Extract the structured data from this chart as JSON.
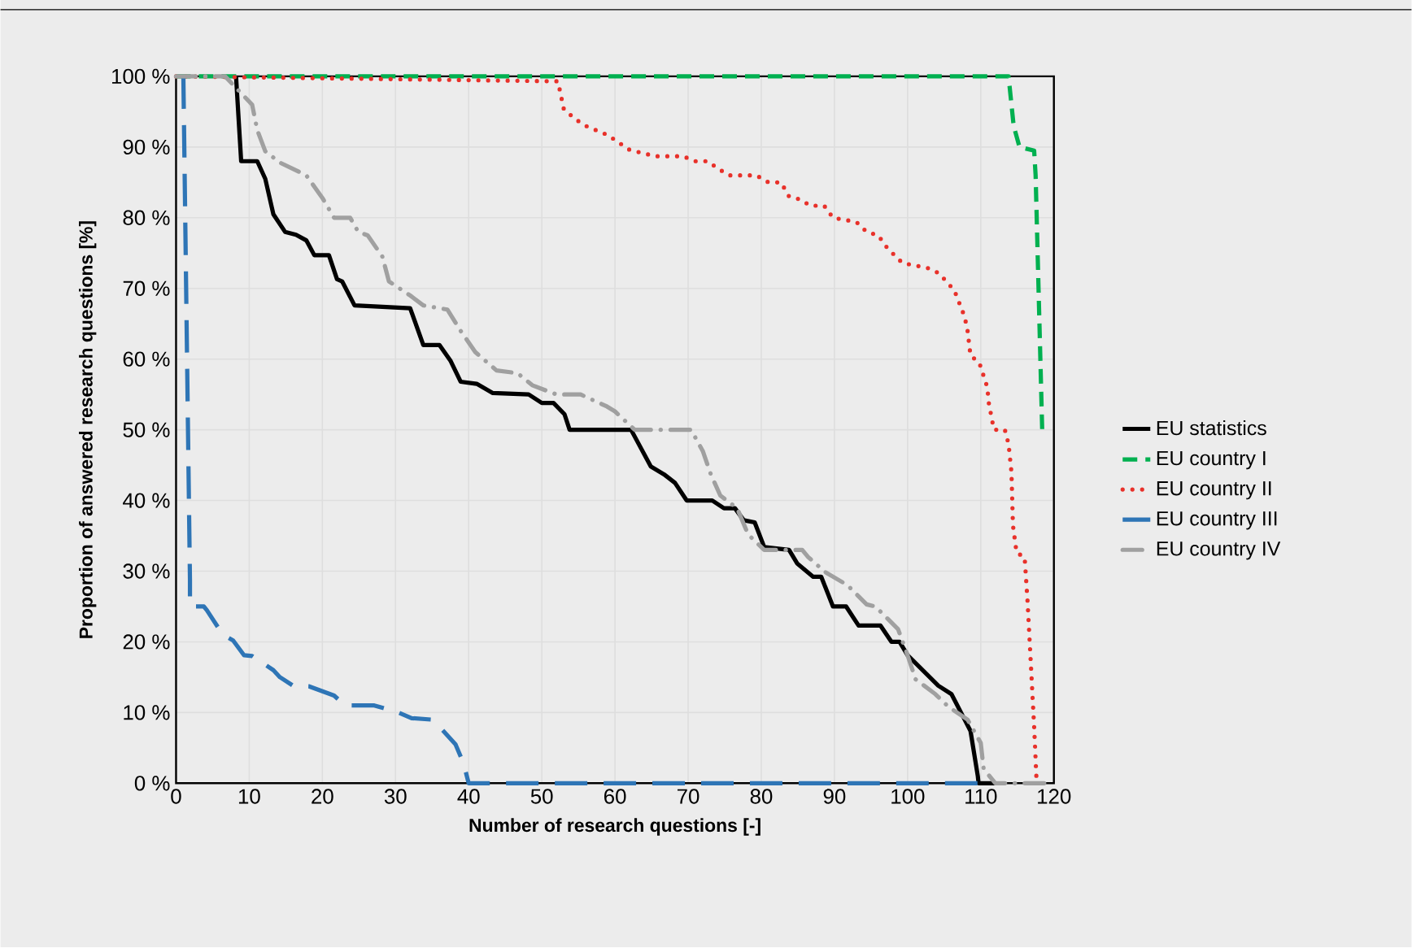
{
  "chart_data": {
    "type": "line",
    "xlabel": "Number of research questions [-]",
    "ylabel": "Proportion of answered research questions [%]",
    "xlim": [
      0,
      120
    ],
    "xticks": [
      0,
      10,
      20,
      30,
      40,
      50,
      60,
      70,
      80,
      90,
      100,
      110,
      120
    ],
    "ylim": [
      0,
      100
    ],
    "yticks": [
      {
        "value": 0,
        "label": "0 %"
      },
      {
        "value": 10,
        "label": "10 %"
      },
      {
        "value": 20,
        "label": "20 %"
      },
      {
        "value": 30,
        "label": "30 %"
      },
      {
        "value": 40,
        "label": "40 %"
      },
      {
        "value": 50,
        "label": "50 %"
      },
      {
        "value": 60,
        "label": "60 %"
      },
      {
        "value": 70,
        "label": "70 %"
      },
      {
        "value": 80,
        "label": "80 %"
      },
      {
        "value": 90,
        "label": "90 %"
      },
      {
        "value": 100,
        "label": "100 %"
      }
    ],
    "grid": true,
    "legend": "right",
    "marker": "none",
    "series": [
      {
        "name": "EU statistics",
        "color": "#000000",
        "line_style": "solid",
        "x": [
          8.2,
          8.9,
          11.1,
          12.2,
          13.3,
          14.9,
          16.4,
          17.8,
          18.9,
          20.9,
          22,
          22.7,
          24.4,
          32,
          33.8,
          36,
          37.5,
          38.9,
          41.1,
          43.3,
          48.2,
          50,
          51.6,
          53.1,
          53.8,
          62.2,
          64.9,
          66.7,
          68.2,
          69.8,
          73.3,
          74.9,
          76.4,
          77.6,
          79.1,
          80.4,
          83.8,
          84.9,
          87.1,
          88.2,
          89.8,
          91.6,
          93.3,
          96.3,
          97.8,
          98.9,
          100,
          104.2,
          106,
          107.8,
          108.6,
          109.6,
          109.7,
          112
        ],
        "values": [
          100,
          88,
          88,
          85.5,
          80.5,
          78,
          77.6,
          76.8,
          74.7,
          74.7,
          71.3,
          71,
          67.6,
          67.2,
          62,
          62,
          59.8,
          56.8,
          56.5,
          55.2,
          55,
          53.8,
          53.8,
          52.2,
          50,
          50,
          44.8,
          43.7,
          42.5,
          40,
          40,
          38.9,
          38.9,
          37.2,
          36.9,
          33.4,
          33,
          31.1,
          29.2,
          29.2,
          25,
          25,
          22.3,
          22.3,
          20,
          20,
          18.1,
          13.8,
          12.6,
          9,
          7.4,
          1,
          0,
          0
        ]
      },
      {
        "name": "EU country I",
        "color": "#00b050",
        "line_style": "dashed",
        "x": [
          0,
          113.8,
          114.5,
          115.3,
          117.3,
          117.5,
          118.4
        ],
        "values": [
          100,
          100,
          93,
          90,
          89.5,
          86,
          50
        ]
      },
      {
        "name": "EU country II",
        "color": "#e8312a",
        "line_style": "dotted",
        "x": [
          0,
          52.2,
          53,
          54.5,
          56,
          59,
          62,
          65.5,
          69.3,
          71,
          72.7,
          74,
          75.6,
          79.3,
          81,
          82.7,
          83.8,
          85.3,
          86.7,
          88.6,
          89.8,
          93,
          94.4,
          96,
          97,
          98.2,
          99.3,
          102.7,
          104.2,
          105.3,
          106.4,
          107.8,
          108.2,
          108.6,
          109.8,
          110.9,
          111.1,
          111.8,
          113.3,
          113.8,
          114.2,
          114.4,
          114.9,
          116,
          116.4,
          116.9,
          117.3,
          117.6,
          118
        ],
        "values": [
          100,
          99.3,
          95.4,
          94,
          93,
          91.7,
          89.6,
          88.7,
          88.7,
          88,
          88,
          87,
          86,
          86,
          85,
          85,
          83,
          82.6,
          81.7,
          81.7,
          80,
          79.4,
          78,
          77.5,
          76,
          74.7,
          73.6,
          72.9,
          72.2,
          71,
          69.7,
          66,
          64,
          60.5,
          59.5,
          56,
          53.8,
          50,
          50,
          48,
          44,
          36.5,
          32.6,
          32,
          25.7,
          15.9,
          8,
          1,
          0
        ]
      },
      {
        "name": "EU country III",
        "color": "#2e75b6",
        "line_style": "longdashed",
        "x": [
          1,
          1.9,
          1.9,
          3.8,
          4.2,
          6.4,
          7.8,
          9.3,
          10.4,
          13.3,
          14.2,
          16,
          18.2,
          21.6,
          23.1,
          27.1,
          30.4,
          32.2,
          34.9,
          36,
          38.2,
          39.3,
          40,
          110.5
        ],
        "values": [
          100,
          28.8,
          25,
          25,
          24.5,
          21,
          20.2,
          18.1,
          18,
          16,
          15,
          13.8,
          13.7,
          12.4,
          11,
          11,
          10,
          9.2,
          9,
          8,
          5.5,
          2.8,
          0,
          0
        ]
      },
      {
        "name": "EU country IV",
        "color": "#a0a0a0",
        "line_style": "dashdot",
        "x": [
          0,
          6.7,
          10.4,
          11.1,
          12.2,
          14.2,
          17.8,
          20,
          21.6,
          23.8,
          24.9,
          26.2,
          28.2,
          29.1,
          32,
          33.8,
          37.1,
          38.9,
          40.9,
          43.8,
          46.7,
          48.7,
          52,
          55.3,
          58.9,
          60,
          62.7,
          66.7,
          70.4,
          72,
          73.1,
          74.4,
          76.7,
          78.2,
          80.4,
          85.6,
          86.4,
          88.7,
          91.8,
          94.4,
          95.6,
          98.7,
          100,
          101.1,
          103.8,
          105.6,
          108.2,
          110,
          110.4,
          112,
          119
        ],
        "values": [
          100,
          100,
          96,
          92.4,
          89.4,
          87.8,
          86,
          82.8,
          80,
          80,
          78,
          77.5,
          74.5,
          71,
          69,
          67.6,
          67,
          64,
          61,
          58.4,
          58,
          56.3,
          55,
          55,
          53.3,
          52.6,
          50,
          50,
          50,
          47,
          43.7,
          40.7,
          38.9,
          35.2,
          33,
          33,
          32,
          29.9,
          28,
          25.3,
          25,
          21.8,
          18.1,
          14.7,
          12.6,
          10.8,
          9,
          5.7,
          2,
          0,
          0
        ]
      }
    ]
  }
}
